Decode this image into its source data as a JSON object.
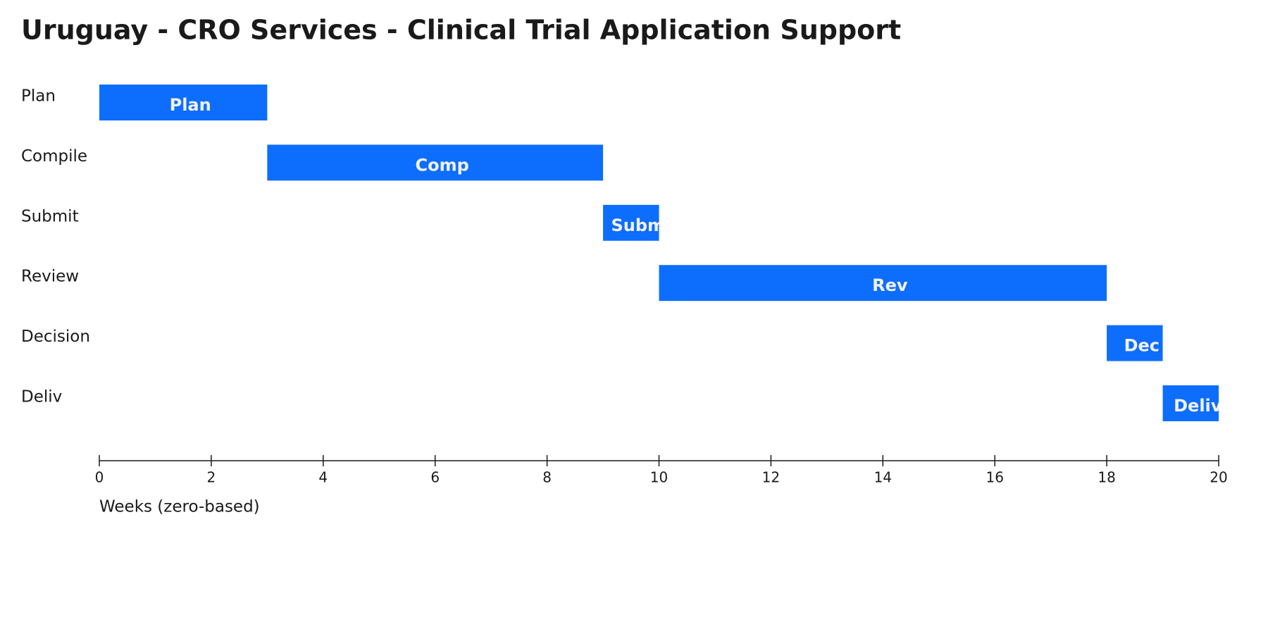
{
  "chart_data": {
    "type": "gantt",
    "title": "Uruguay - CRO Services - Clinical Trial Application Support",
    "categories": [
      "Plan",
      "Compile",
      "Submit",
      "Review",
      "Decision",
      "Deliv"
    ],
    "starts": [
      0,
      3,
      9,
      10,
      18,
      19
    ],
    "ends": [
      3,
      9,
      10,
      18,
      19,
      20
    ],
    "bar_labels": [
      "Plan",
      "Comp",
      "Subm",
      "Rev",
      "Dec",
      "Deliv"
    ],
    "color": "#0d6efd",
    "xlim": [
      0,
      20
    ],
    "xticks": [
      0,
      2,
      4,
      6,
      8,
      10,
      12,
      14,
      16,
      18,
      20
    ],
    "xlabel": "Weeks (zero-based)"
  }
}
